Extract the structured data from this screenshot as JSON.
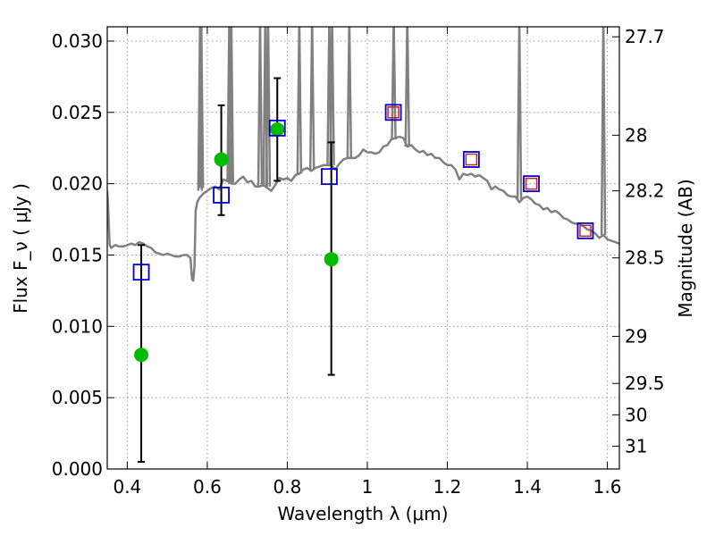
{
  "chart_data": {
    "type": "scatter",
    "title": "",
    "xlabel": "Wavelength  λ (μm)",
    "ylabel": "Flux  F_ν  ( μJy )",
    "y2label": "Magnitude (AB)",
    "xlim": [
      0.35,
      1.63
    ],
    "ylim": [
      0.0,
      0.031
    ],
    "grid": true,
    "x_ticks": [
      0.4,
      0.6,
      0.8,
      1.0,
      1.2,
      1.4,
      1.6
    ],
    "x_tick_labels": [
      "0.4",
      "0.6",
      "0.8",
      "1",
      "1.2",
      "1.4",
      "1.6"
    ],
    "y_ticks": [
      0.0,
      0.005,
      0.01,
      0.015,
      0.02,
      0.025,
      0.03
    ],
    "y_tick_labels": [
      "0.000",
      "0.005",
      "0.010",
      "0.015",
      "0.020",
      "0.025",
      "0.030"
    ],
    "y2_ticks": [
      {
        "label": "27.7",
        "flux": 0.0303
      },
      {
        "label": "28",
        "flux": 0.0234
      },
      {
        "label": "28.2",
        "flux": 0.0195
      },
      {
        "label": "28.5",
        "flux": 0.0148
      },
      {
        "label": "29",
        "flux": 0.0093
      },
      {
        "label": "29.5",
        "flux": 0.006
      },
      {
        "label": "30",
        "flux": 0.0038
      },
      {
        "label": "31",
        "flux": 0.0016
      }
    ],
    "colors": {
      "model": "#808080",
      "observed": "#00bb00",
      "errorbar": "#000000",
      "model_photometry": "#0000cc",
      "nir_photometry": "#cc2222",
      "grid": "#999999"
    },
    "series": [
      {
        "kind": "model-spectrum",
        "x": [
          0.35,
          0.352,
          0.356,
          0.36,
          0.37,
          0.38,
          0.39,
          0.4,
          0.41,
          0.42,
          0.43,
          0.44,
          0.45,
          0.46,
          0.47,
          0.48,
          0.49,
          0.5,
          0.51,
          0.52,
          0.53,
          0.54,
          0.55,
          0.558,
          0.562,
          0.565,
          0.568,
          0.571,
          0.575,
          0.58,
          0.59,
          0.6,
          0.61,
          0.62,
          0.63,
          0.64,
          0.65,
          0.66,
          0.67,
          0.68,
          0.69,
          0.7,
          0.71,
          0.72,
          0.73,
          0.74,
          0.75,
          0.76,
          0.77,
          0.78,
          0.79,
          0.8,
          0.81,
          0.82,
          0.83,
          0.84,
          0.85,
          0.86,
          0.87,
          0.88,
          0.89,
          0.9,
          0.91,
          0.92,
          0.93,
          0.94,
          0.95,
          0.96,
          0.97,
          0.98,
          0.99,
          1.0,
          1.01,
          1.02,
          1.03,
          1.04,
          1.05,
          1.06,
          1.07,
          1.08,
          1.09,
          1.1,
          1.11,
          1.12,
          1.13,
          1.14,
          1.15,
          1.16,
          1.17,
          1.18,
          1.19,
          1.2,
          1.21,
          1.22,
          1.23,
          1.24,
          1.25,
          1.26,
          1.27,
          1.28,
          1.29,
          1.3,
          1.31,
          1.32,
          1.33,
          1.34,
          1.35,
          1.36,
          1.37,
          1.38,
          1.39,
          1.4,
          1.41,
          1.42,
          1.43,
          1.44,
          1.45,
          1.46,
          1.47,
          1.48,
          1.49,
          1.5,
          1.51,
          1.52,
          1.53,
          1.54,
          1.55,
          1.56,
          1.57,
          1.58,
          1.59,
          1.6,
          1.61,
          1.63
        ],
        "y": [
          0.0195,
          0.0185,
          0.0157,
          0.0155,
          0.0157,
          0.0156,
          0.0156,
          0.0157,
          0.0158,
          0.0157,
          0.0159,
          0.0158,
          0.0156,
          0.0155,
          0.0152,
          0.0151,
          0.015,
          0.0151,
          0.015,
          0.0149,
          0.0149,
          0.015,
          0.015,
          0.0148,
          0.0133,
          0.0132,
          0.0142,
          0.0181,
          0.0187,
          0.019,
          0.0193,
          0.0195,
          0.0197,
          0.0198,
          0.0196,
          0.0203,
          0.0202,
          0.02,
          0.02,
          0.0203,
          0.0205,
          0.0201,
          0.0202,
          0.0198,
          0.0198,
          0.0199,
          0.0197,
          0.0195,
          0.0199,
          0.0204,
          0.0203,
          0.0204,
          0.0202,
          0.0206,
          0.0207,
          0.021,
          0.0211,
          0.0209,
          0.0211,
          0.0212,
          0.0213,
          0.0213,
          0.0213,
          0.021,
          0.0214,
          0.0217,
          0.0218,
          0.0218,
          0.0218,
          0.022,
          0.0224,
          0.0222,
          0.0222,
          0.0221,
          0.0222,
          0.0226,
          0.0227,
          0.0231,
          0.0232,
          0.0233,
          0.0232,
          0.0226,
          0.0227,
          0.0224,
          0.0222,
          0.0223,
          0.022,
          0.0221,
          0.0218,
          0.0218,
          0.0215,
          0.0213,
          0.0213,
          0.021,
          0.0203,
          0.0207,
          0.0206,
          0.0207,
          0.0205,
          0.0206,
          0.0204,
          0.0202,
          0.0196,
          0.0198,
          0.0196,
          0.0195,
          0.0192,
          0.0191,
          0.0191,
          0.0187,
          0.019,
          0.0191,
          0.0189,
          0.0186,
          0.0185,
          0.0182,
          0.0183,
          0.018,
          0.0181,
          0.0179,
          0.0176,
          0.0175,
          0.0173,
          0.0172,
          0.0172,
          0.017,
          0.0168,
          0.0167,
          0.0165,
          0.0162,
          0.0164,
          0.0161,
          0.016,
          0.0158
        ]
      },
      {
        "kind": "observed-points",
        "x": [
          0.435,
          0.635,
          0.775,
          0.91
        ],
        "y": [
          0.008,
          0.0217,
          0.0238,
          0.0147
        ],
        "err_low": [
          0.0005,
          0.0178,
          0.0202,
          0.0066
        ],
        "err_high": [
          0.0157,
          0.0255,
          0.0274,
          0.0229
        ]
      },
      {
        "kind": "model-photometry-squares",
        "x": [
          0.435,
          0.635,
          0.775,
          0.905,
          1.065,
          1.26,
          1.41,
          1.545
        ],
        "y": [
          0.0138,
          0.0192,
          0.0239,
          0.0205,
          0.025,
          0.0217,
          0.02,
          0.0167
        ]
      },
      {
        "kind": "nir-photometry-squares",
        "x": [
          1.065,
          1.26,
          1.41,
          1.545
        ],
        "y": [
          0.025,
          0.0217,
          0.02,
          0.0167
        ]
      }
    ]
  }
}
